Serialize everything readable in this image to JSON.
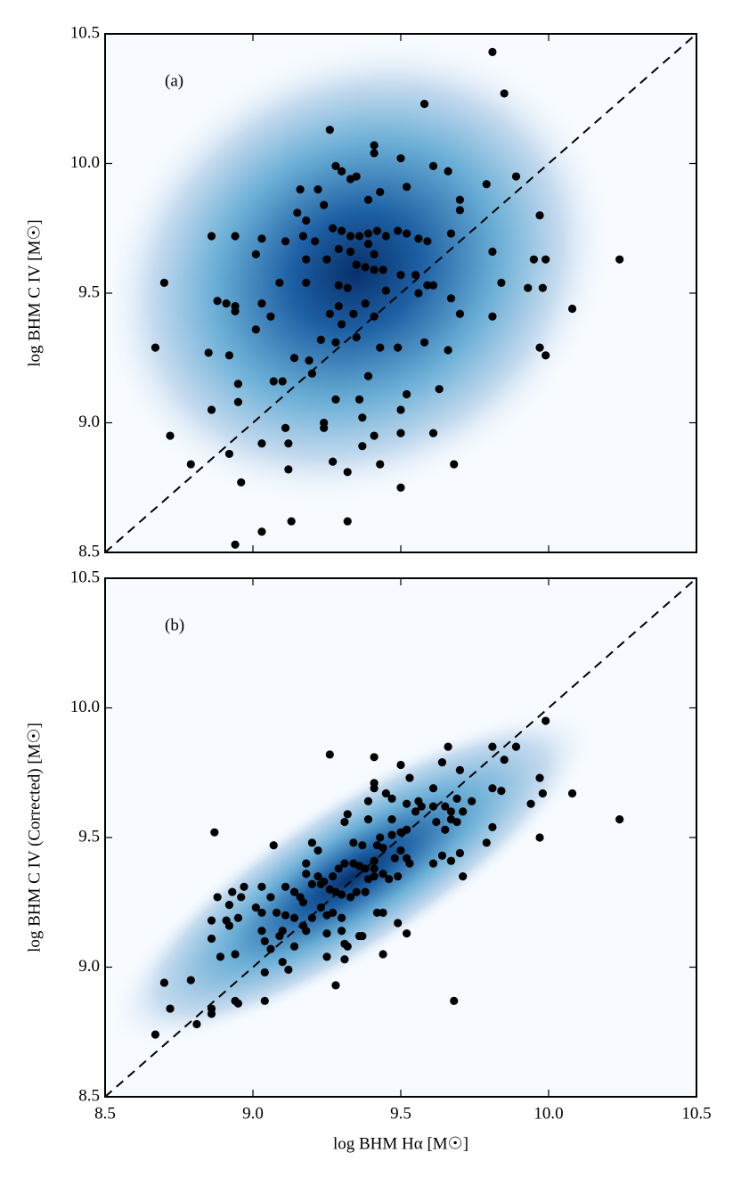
{
  "chart_data": [
    {
      "type": "scatter",
      "label": "(a)",
      "ylabel": "log BHM C IV [M☉]",
      "color": "#000000",
      "xlim": [
        8.5,
        10.5
      ],
      "ylim": [
        8.5,
        10.5
      ],
      "xticks": [
        8.5,
        9,
        9.5,
        10,
        10.5
      ],
      "yticks": [
        8.5,
        {
          "value": 9,
          "label": "9.0"
        },
        9.5,
        {
          "value": 10,
          "label": "10.0"
        },
        10.5
      ],
      "x": [
        9.81,
        9.85,
        9.58,
        9.26,
        9.41,
        9.41,
        9.5,
        9.28,
        9.3,
        9.61,
        9.66,
        9.79,
        9.89,
        9.35,
        9.39,
        9.24,
        9.43,
        9.22,
        9.33,
        9.16,
        9.7,
        9.52,
        9.97,
        9.81,
        9.7,
        9.15,
        9.18,
        9.27,
        9.3,
        9.33,
        9.36,
        9.39,
        9.42,
        9.45,
        9.49,
        9.52,
        9.56,
        9.59,
        9.67,
        8.86,
        8.94,
        9.03,
        9.01,
        9.11,
        9.17,
        9.21,
        9.29,
        9.33,
        9.39,
        9.41,
        10.24,
        9.95,
        9.99,
        9.98,
        9.93,
        9.84,
        9.81,
        8.7,
        8.88,
        8.91,
        8.94,
        8.94,
        9.06,
        9.09,
        9.03,
        9.18,
        9.18,
        9.25,
        9.29,
        9.32,
        9.35,
        9.38,
        9.41,
        9.44,
        9.5,
        9.55,
        9.56,
        9.59,
        9.61,
        9.67,
        9.7,
        9.26,
        9.29,
        9.34,
        9.38,
        9.45,
        9.23,
        9.28,
        9.3,
        9.41,
        8.67,
        8.85,
        8.92,
        9.01,
        9.14,
        9.1,
        9.07,
        9.19,
        9.2,
        9.35,
        9.43,
        9.39,
        9.36,
        9.49,
        9.58,
        9.66,
        9.99,
        9.97,
        10.08,
        8.95,
        8.95,
        8.86,
        9.24,
        9.28,
        9.52,
        9.63,
        9.5,
        8.72,
        8.79,
        8.92,
        8.96,
        9.03,
        9.11,
        9.12,
        9.12,
        9.24,
        9.27,
        9.32,
        9.37,
        9.37,
        9.41,
        9.5,
        9.61,
        9.68,
        9.43,
        8.94,
        9.03,
        9.13,
        9.32,
        9.5
      ],
      "values": [
        10.43,
        10.27,
        10.23,
        10.13,
        10.07,
        10.04,
        10.02,
        9.99,
        9.97,
        9.99,
        9.97,
        9.92,
        9.95,
        9.95,
        9.86,
        9.84,
        9.89,
        9.9,
        9.94,
        9.9,
        9.86,
        9.91,
        9.8,
        9.66,
        9.82,
        9.81,
        9.78,
        9.75,
        9.74,
        9.72,
        9.72,
        9.73,
        9.74,
        9.72,
        9.74,
        9.73,
        9.71,
        9.7,
        9.73,
        9.72,
        9.72,
        9.71,
        9.65,
        9.7,
        9.72,
        9.7,
        9.67,
        9.66,
        9.69,
        9.65,
        9.63,
        9.63,
        9.63,
        9.52,
        9.52,
        9.54,
        9.41,
        9.54,
        9.47,
        9.46,
        9.45,
        9.43,
        9.41,
        9.54,
        9.46,
        9.63,
        9.54,
        9.63,
        9.53,
        9.52,
        9.61,
        9.6,
        9.59,
        9.59,
        9.57,
        9.57,
        9.5,
        9.53,
        9.53,
        9.48,
        9.42,
        9.42,
        9.45,
        9.42,
        9.46,
        9.51,
        9.32,
        9.31,
        9.38,
        9.41,
        9.29,
        9.27,
        9.26,
        9.36,
        9.25,
        9.16,
        9.16,
        9.24,
        9.19,
        9.33,
        9.29,
        9.18,
        9.09,
        9.29,
        9.31,
        9.28,
        9.26,
        9.29,
        9.44,
        9.15,
        9.08,
        9.05,
        9.0,
        9.09,
        9.11,
        9.13,
        9.05,
        8.95,
        8.84,
        8.88,
        8.77,
        8.92,
        8.98,
        8.92,
        8.82,
        8.98,
        8.85,
        8.81,
        9.02,
        8.91,
        8.95,
        8.96,
        8.96,
        8.84,
        8.84,
        8.53,
        8.58,
        8.62,
        8.62,
        8.75
      ]
    },
    {
      "type": "scatter",
      "label": "(b)",
      "ylabel": "log BHM C IV (Corrected) [M☉]",
      "xlabel": "log BHM Hα [M☉]",
      "color": "#000000",
      "xlim": [
        8.5,
        10.5
      ],
      "ylim": [
        8.5,
        10.5
      ],
      "xticks": [
        8.5,
        {
          "value": 9,
          "label": "9.0"
        },
        9.5,
        {
          "value": 10,
          "label": "10.0"
        },
        10.5
      ],
      "yticks": [
        8.5,
        {
          "value": 9,
          "label": "9.0"
        },
        9.5,
        {
          "value": 10,
          "label": "10.0"
        },
        10.5
      ],
      "x": [
        9.99,
        9.81,
        9.89,
        9.66,
        9.26,
        9.41,
        9.5,
        9.85,
        9.7,
        9.64,
        9.97,
        9.81,
        9.53,
        9.61,
        10.08,
        9.94,
        9.98,
        9.84,
        9.69,
        9.56,
        9.74,
        9.61,
        9.65,
        9.67,
        9.71,
        8.87,
        9.07,
        9.2,
        9.22,
        9.32,
        9.31,
        9.41,
        9.41,
        9.39,
        9.45,
        9.47,
        9.52,
        9.57,
        9.62,
        9.67,
        9.69,
        9.65,
        9.55,
        9.52,
        9.5,
        9.47,
        9.43,
        9.39,
        9.37,
        9.34,
        9.97,
        9.79,
        10.24,
        9.81,
        9.18,
        9.18,
        9.22,
        9.24,
        9.27,
        9.29,
        9.31,
        9.34,
        9.36,
        9.38,
        9.41,
        9.44,
        9.41,
        9.48,
        9.52,
        9.53,
        9.61,
        9.64,
        9.67,
        9.7,
        9.5,
        9.44,
        9.42,
        9.47,
        8.97,
        9.03,
        9.06,
        9.11,
        9.14,
        9.16,
        9.2,
        9.23,
        9.26,
        9.28,
        9.3,
        9.33,
        9.35,
        9.38,
        9.39,
        9.41,
        9.46,
        9.49,
        8.88,
        8.93,
        8.92,
        8.96,
        9.01,
        9.03,
        9.08,
        9.11,
        9.14,
        9.17,
        9.2,
        9.23,
        9.25,
        9.27,
        9.3,
        8.86,
        8.86,
        8.91,
        8.95,
        8.92,
        9.03,
        9.04,
        9.09,
        9.18,
        9.1,
        9.17,
        9.06,
        9.14,
        9.25,
        9.3,
        9.31,
        9.36,
        9.37,
        9.42,
        9.44,
        9.49,
        9.52,
        9.25,
        9.32,
        9.31,
        9.1,
        9.12,
        8.94,
        8.89,
        9.44,
        9.71,
        8.7,
        8.79,
        8.72,
        9.04,
        9.28,
        9.68,
        8.94,
        8.95,
        8.86,
        8.86,
        8.81,
        9.04,
        8.67
      ],
      "values": [
        9.95,
        9.85,
        9.85,
        9.85,
        9.82,
        9.81,
        9.78,
        9.8,
        9.76,
        9.79,
        9.73,
        9.69,
        9.73,
        9.69,
        9.67,
        9.63,
        9.67,
        9.68,
        9.65,
        9.64,
        9.64,
        9.62,
        9.62,
        9.6,
        9.6,
        9.52,
        9.47,
        9.48,
        9.45,
        9.59,
        9.56,
        9.71,
        9.69,
        9.64,
        9.67,
        9.65,
        9.63,
        9.62,
        9.56,
        9.57,
        9.56,
        9.53,
        9.6,
        9.53,
        9.52,
        9.51,
        9.5,
        9.57,
        9.47,
        9.48,
        9.5,
        9.48,
        9.57,
        9.54,
        9.4,
        9.36,
        9.35,
        9.33,
        9.35,
        9.38,
        9.4,
        9.4,
        9.39,
        9.38,
        9.38,
        9.36,
        9.41,
        9.42,
        9.42,
        9.4,
        9.4,
        9.43,
        9.41,
        9.44,
        9.45,
        9.46,
        9.47,
        9.57,
        9.31,
        9.31,
        9.27,
        9.31,
        9.29,
        9.27,
        9.32,
        9.32,
        9.3,
        9.29,
        9.28,
        9.27,
        9.29,
        9.29,
        9.34,
        9.35,
        9.34,
        9.35,
        9.27,
        9.29,
        9.24,
        9.27,
        9.23,
        9.21,
        9.21,
        9.2,
        9.19,
        9.25,
        9.19,
        9.23,
        9.2,
        9.21,
        9.19,
        9.18,
        9.11,
        9.18,
        9.19,
        9.16,
        9.14,
        9.1,
        9.12,
        9.14,
        9.14,
        9.16,
        9.07,
        9.08,
        9.13,
        9.14,
        9.09,
        9.12,
        9.12,
        9.21,
        9.21,
        9.17,
        9.13,
        9.04,
        9.08,
        9.03,
        9.02,
        8.99,
        9.05,
        9.04,
        9.05,
        9.35,
        8.94,
        8.95,
        8.84,
        8.98,
        8.93,
        8.87,
        8.87,
        8.86,
        8.84,
        8.82,
        8.78,
        8.87,
        8.74
      ]
    }
  ]
}
